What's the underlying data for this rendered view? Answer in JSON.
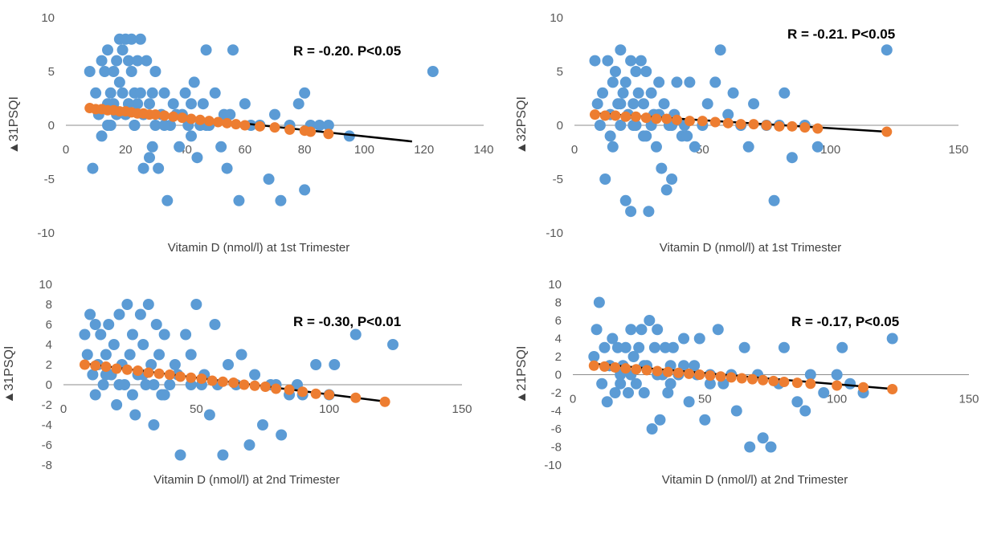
{
  "colors": {
    "observed": "#5b9bd5",
    "predicted": "#ed7d31",
    "trend": "#000000",
    "axis": "#8c8c8c"
  },
  "chart_data": [
    {
      "type": "scatter",
      "xlabel": "Vitamin D (nmol/l) at 1st Trimester",
      "ylabel": "▲31PSQI",
      "annotation": "R = -0.20. P<0.05",
      "xlim": [
        0,
        140
      ],
      "ylim": [
        -10,
        10
      ],
      "xticks": [
        0,
        20,
        40,
        60,
        80,
        100,
        120,
        140
      ],
      "yticks": [
        10,
        5,
        0,
        -5,
        -10
      ],
      "trend": {
        "x": [
          8,
          116
        ],
        "y": [
          1.7,
          -1.5
        ]
      },
      "predicted": {
        "x": [
          8,
          10,
          12,
          14,
          16,
          18,
          20,
          22,
          24,
          26,
          28,
          30,
          33,
          36,
          39,
          42,
          45,
          48,
          51,
          54,
          57,
          60,
          65,
          70,
          75,
          80,
          82,
          88
        ],
        "y": [
          1.6,
          1.5,
          1.5,
          1.4,
          1.4,
          1.3,
          1.3,
          1.2,
          1.1,
          1.1,
          1.0,
          1.0,
          0.9,
          0.8,
          0.7,
          0.6,
          0.5,
          0.4,
          0.3,
          0.2,
          0.1,
          0.0,
          -0.1,
          -0.2,
          -0.4,
          -0.5,
          -0.6,
          -0.8
        ]
      },
      "observed": {
        "x": [
          8,
          9,
          10,
          11,
          12,
          13,
          14,
          14,
          15,
          15,
          16,
          16,
          17,
          18,
          18,
          19,
          19,
          20,
          20,
          21,
          21,
          22,
          22,
          23,
          23,
          24,
          24,
          25,
          25,
          26,
          26,
          27,
          28,
          28,
          29,
          30,
          30,
          31,
          32,
          33,
          34,
          35,
          36,
          38,
          39,
          40,
          41,
          42,
          43,
          44,
          45,
          46,
          47,
          48,
          50,
          52,
          54,
          55,
          56,
          58,
          60,
          62,
          65,
          68,
          70,
          72,
          75,
          78,
          80,
          80,
          82,
          85,
          88,
          95,
          123,
          12,
          14,
          17,
          21,
          23,
          26,
          29,
          33,
          37,
          42,
          47,
          53
        ],
        "y": [
          5,
          -4,
          3,
          1,
          6,
          5,
          7,
          2,
          0,
          3,
          2,
          5,
          6,
          8,
          4,
          7,
          3,
          8,
          1,
          6,
          2,
          8,
          5,
          3,
          0,
          6,
          2,
          3,
          8,
          -4,
          1,
          6,
          2,
          -3,
          3,
          5,
          0,
          -4,
          1,
          3,
          -7,
          0,
          2,
          -2,
          1,
          3,
          0,
          2,
          4,
          -3,
          0,
          2,
          7,
          0,
          3,
          -2,
          -4,
          1,
          7,
          -7,
          2,
          0,
          0,
          -5,
          1,
          -7,
          0,
          2,
          3,
          -6,
          0,
          0,
          0,
          -1,
          5,
          -1,
          0,
          1,
          2,
          0,
          1,
          -2,
          0,
          1,
          -1,
          0,
          1
        ]
      }
    },
    {
      "type": "scatter",
      "xlabel": "Vitamin D (nmol/l) at 1st Trimester",
      "ylabel": "▲32PSQI",
      "annotation": "R = -0.21. P<0.05",
      "xlim": [
        0,
        150
      ],
      "ylim": [
        -10,
        10
      ],
      "xticks": [
        0,
        50,
        100,
        150
      ],
      "yticks": [
        10,
        5,
        0,
        -5,
        -10
      ],
      "trend": {
        "x": [
          8,
          122
        ],
        "y": [
          1.1,
          -0.6
        ]
      },
      "predicted": {
        "x": [
          8,
          12,
          16,
          20,
          24,
          28,
          32,
          36,
          40,
          45,
          50,
          55,
          60,
          65,
          70,
          75,
          80,
          85,
          90,
          95,
          122
        ],
        "y": [
          1.0,
          0.9,
          0.9,
          0.8,
          0.8,
          0.7,
          0.6,
          0.6,
          0.5,
          0.4,
          0.4,
          0.3,
          0.2,
          0.1,
          0.1,
          0.0,
          -0.1,
          -0.1,
          -0.2,
          -0.3,
          -0.6
        ]
      },
      "observed": {
        "x": [
          8,
          9,
          10,
          11,
          12,
          13,
          14,
          15,
          15,
          16,
          17,
          18,
          18,
          19,
          20,
          20,
          21,
          22,
          22,
          23,
          24,
          24,
          25,
          26,
          27,
          27,
          28,
          29,
          30,
          30,
          31,
          32,
          33,
          34,
          35,
          36,
          37,
          38,
          39,
          40,
          42,
          43,
          45,
          47,
          50,
          52,
          55,
          57,
          60,
          62,
          65,
          68,
          70,
          75,
          78,
          80,
          82,
          85,
          90,
          95,
          122,
          14,
          18,
          23,
          28,
          33,
          38,
          44
        ],
        "y": [
          6,
          2,
          0,
          3,
          -5,
          6,
          1,
          4,
          -2,
          5,
          2,
          7,
          0,
          3,
          -7,
          4,
          1,
          6,
          -8,
          2,
          5,
          0,
          3,
          6,
          -1,
          2,
          5,
          -8,
          0,
          3,
          1,
          -2,
          4,
          -4,
          2,
          -6,
          0,
          -5,
          1,
          4,
          -1,
          0,
          4,
          -2,
          0,
          2,
          4,
          7,
          1,
          3,
          0,
          -2,
          2,
          0,
          -7,
          0,
          3,
          -3,
          0,
          -2,
          7,
          -1,
          2,
          0,
          -1,
          1,
          0,
          -1
        ]
      }
    },
    {
      "type": "scatter",
      "xlabel": "Vitamin D (nmol/l) at 2nd Trimester",
      "ylabel": "▲31PSQI",
      "annotation": "R = -0.30, P<0.01",
      "xlim": [
        0,
        150
      ],
      "ylim": [
        -8,
        10
      ],
      "xticks": [
        0,
        50,
        100,
        150
      ],
      "yticks": [
        10,
        8,
        6,
        4,
        2,
        0,
        -2,
        -4,
        -6,
        -8
      ],
      "trend": {
        "x": [
          8,
          122
        ],
        "y": [
          2.1,
          -1.7
        ]
      },
      "predicted": {
        "x": [
          8,
          12,
          16,
          20,
          24,
          28,
          32,
          36,
          40,
          44,
          48,
          52,
          56,
          60,
          64,
          68,
          72,
          76,
          80,
          85,
          90,
          95,
          100,
          110,
          121
        ],
        "y": [
          2.0,
          1.9,
          1.8,
          1.6,
          1.5,
          1.4,
          1.2,
          1.1,
          1.0,
          0.8,
          0.7,
          0.6,
          0.4,
          0.3,
          0.2,
          0.0,
          -0.1,
          -0.2,
          -0.4,
          -0.5,
          -0.7,
          -0.9,
          -1.0,
          -1.3,
          -1.7
        ]
      },
      "observed": {
        "x": [
          8,
          9,
          10,
          11,
          12,
          13,
          14,
          15,
          16,
          17,
          18,
          19,
          20,
          21,
          22,
          23,
          24,
          25,
          26,
          27,
          28,
          29,
          30,
          31,
          32,
          33,
          34,
          35,
          36,
          37,
          38,
          40,
          42,
          44,
          46,
          48,
          50,
          52,
          55,
          57,
          60,
          62,
          65,
          67,
          70,
          72,
          75,
          78,
          80,
          82,
          85,
          88,
          90,
          95,
          100,
          102,
          110,
          124,
          12,
          16,
          21,
          26,
          30,
          34,
          38,
          43,
          48,
          53,
          58
        ],
        "y": [
          5,
          3,
          7,
          1,
          6,
          2,
          5,
          0,
          3,
          6,
          1,
          4,
          -2,
          7,
          2,
          0,
          8,
          3,
          5,
          -3,
          1,
          7,
          4,
          0,
          8,
          2,
          -4,
          6,
          3,
          -1,
          5,
          0,
          2,
          -7,
          5,
          3,
          8,
          0,
          -3,
          6,
          -7,
          2,
          0,
          3,
          -6,
          1,
          -4,
          0,
          0,
          -5,
          -1,
          0,
          -1,
          2,
          -1,
          2,
          5,
          4,
          -1,
          1,
          0,
          -1,
          1,
          0,
          -1,
          1,
          0,
          1,
          0
        ]
      }
    },
    {
      "type": "scatter",
      "xlabel": "Vitamin D (nmol/l) at 2nd Trimester",
      "ylabel": "▲21PSQI",
      "annotation": "R = -0.17, P<0.05",
      "xlim": [
        0,
        150
      ],
      "ylim": [
        -10,
        10
      ],
      "xticks": [
        0,
        50,
        100,
        150
      ],
      "yticks": [
        10,
        8,
        6,
        4,
        2,
        0,
        -2,
        -4,
        -6,
        -8,
        -10
      ],
      "trend": {
        "x": [
          8,
          122
        ],
        "y": [
          1.2,
          -1.6
        ]
      },
      "predicted": {
        "x": [
          8,
          12,
          16,
          20,
          24,
          28,
          32,
          36,
          40,
          44,
          48,
          52,
          56,
          60,
          64,
          68,
          72,
          76,
          80,
          85,
          90,
          100,
          110,
          121
        ],
        "y": [
          1.0,
          0.9,
          0.8,
          0.7,
          0.6,
          0.5,
          0.4,
          0.3,
          0.2,
          0.1,
          0.0,
          -0.1,
          -0.2,
          -0.3,
          -0.4,
          -0.5,
          -0.6,
          -0.7,
          -0.8,
          -0.9,
          -1.0,
          -1.2,
          -1.4,
          -1.6
        ]
      },
      "observed": {
        "x": [
          8,
          9,
          10,
          11,
          12,
          13,
          14,
          15,
          16,
          17,
          18,
          19,
          20,
          21,
          22,
          23,
          24,
          25,
          26,
          27,
          28,
          29,
          30,
          31,
          32,
          33,
          34,
          35,
          36,
          37,
          38,
          40,
          42,
          44,
          46,
          48,
          50,
          52,
          55,
          57,
          60,
          62,
          65,
          67,
          70,
          72,
          75,
          78,
          80,
          85,
          88,
          90,
          95,
          100,
          102,
          105,
          110,
          121,
          14,
          18,
          22,
          27,
          32,
          37,
          42,
          47,
          52
        ],
        "y": [
          2,
          5,
          8,
          -1,
          3,
          -3,
          1,
          4,
          -2,
          3,
          0,
          1,
          3,
          -2,
          5,
          2,
          -1,
          3,
          5,
          -2,
          1,
          6,
          -6,
          3,
          5,
          -5,
          0,
          3,
          -2,
          1,
          3,
          0,
          4,
          -3,
          1,
          4,
          -5,
          0,
          5,
          -1,
          0,
          -4,
          3,
          -8,
          0,
          -7,
          -8,
          -1,
          3,
          -3,
          -4,
          0,
          -2,
          0,
          3,
          -1,
          -2,
          4,
          1,
          -1,
          0,
          1,
          0,
          -1,
          1,
          0,
          -1
        ]
      }
    }
  ]
}
